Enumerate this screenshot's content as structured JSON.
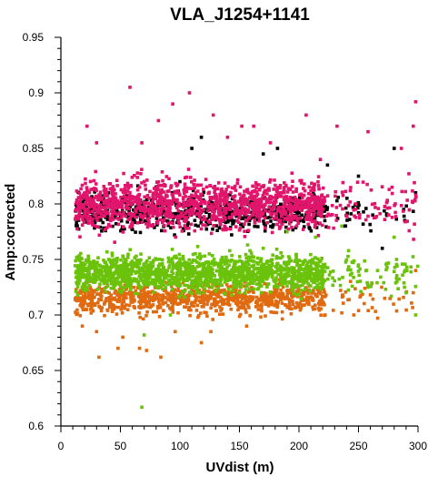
{
  "chart_data": {
    "type": "scatter",
    "title": "VLA_J1254+1141",
    "xlabel": "UVdist (m)",
    "ylabel": "Amp:corrected",
    "xlim": [
      0,
      300
    ],
    "ylim": [
      0.6,
      0.95
    ],
    "xticks": [
      "0",
      "50",
      "100",
      "150",
      "200",
      "250",
      "300"
    ],
    "yticks": [
      "0.6",
      "0.65",
      "0.7",
      "0.75",
      "0.8",
      "0.85",
      "0.9",
      "0.95"
    ],
    "grid": false,
    "legend": "none",
    "series": [
      {
        "color": "#000000",
        "x_range": [
          12,
          300
        ],
        "y_center": 0.792,
        "y_spread": 0.02,
        "points": [
          [
            20,
            0.805
          ],
          [
            40,
            0.81
          ],
          [
            60,
            0.8
          ],
          [
            80,
            0.815
          ],
          [
            100,
            0.82
          ],
          [
            110,
            0.85
          ],
          [
            118,
            0.86
          ],
          [
            140,
            0.79
          ],
          [
            160,
            0.805
          ],
          [
            170,
            0.845
          ],
          [
            182,
            0.85
          ],
          [
            195,
            0.8
          ],
          [
            212,
            0.81
          ],
          [
            224,
            0.835
          ],
          [
            238,
            0.78
          ],
          [
            250,
            0.825
          ],
          [
            262,
            0.79
          ],
          [
            270,
            0.76
          ],
          [
            280,
            0.85
          ],
          [
            288,
            0.795
          ],
          [
            298,
            0.81
          ]
        ]
      },
      {
        "color": "#e0156b",
        "x_range": [
          12,
          300
        ],
        "y_center": 0.8,
        "y_spread": 0.028,
        "points": [
          [
            22,
            0.87
          ],
          [
            30,
            0.855
          ],
          [
            58,
            0.905
          ],
          [
            68,
            0.855
          ],
          [
            82,
            0.875
          ],
          [
            94,
            0.89
          ],
          [
            108,
            0.9
          ],
          [
            128,
            0.88
          ],
          [
            140,
            0.86
          ],
          [
            152,
            0.87
          ],
          [
            162,
            0.87
          ],
          [
            176,
            0.855
          ],
          [
            206,
            0.88
          ],
          [
            218,
            0.84
          ],
          [
            232,
            0.87
          ],
          [
            258,
            0.865
          ],
          [
            286,
            0.85
          ],
          [
            298,
            0.892
          ],
          [
            296,
            0.87
          ]
        ]
      },
      {
        "color": "#e06a10",
        "x_range": [
          12,
          300
        ],
        "y_center": 0.715,
        "y_spread": 0.018,
        "points": [
          [
            18,
            0.69
          ],
          [
            30,
            0.685
          ],
          [
            32,
            0.662
          ],
          [
            48,
            0.67
          ],
          [
            52,
            0.68
          ],
          [
            66,
            0.67
          ],
          [
            72,
            0.668
          ],
          [
            84,
            0.662
          ],
          [
            96,
            0.685
          ],
          [
            118,
            0.675
          ],
          [
            126,
            0.685
          ],
          [
            156,
            0.69
          ],
          [
            200,
            0.72
          ],
          [
            222,
            0.7
          ],
          [
            246,
            0.7
          ],
          [
            272,
            0.715
          ],
          [
            296,
            0.72
          ],
          [
            298,
            0.74
          ]
        ]
      },
      {
        "color": "#6ac20a",
        "x_range": [
          12,
          300
        ],
        "y_center": 0.738,
        "y_spread": 0.02,
        "points": [
          [
            68,
            0.617
          ],
          [
            70,
            0.682
          ],
          [
            92,
            0.7
          ],
          [
            120,
            0.72
          ],
          [
            170,
            0.76
          ],
          [
            190,
            0.775
          ],
          [
            214,
            0.77
          ],
          [
            236,
            0.78
          ],
          [
            250,
            0.745
          ],
          [
            258,
            0.725
          ],
          [
            266,
            0.74
          ],
          [
            280,
            0.77
          ],
          [
            282,
            0.75
          ],
          [
            290,
            0.72
          ],
          [
            298,
            0.7
          ]
        ]
      }
    ]
  }
}
